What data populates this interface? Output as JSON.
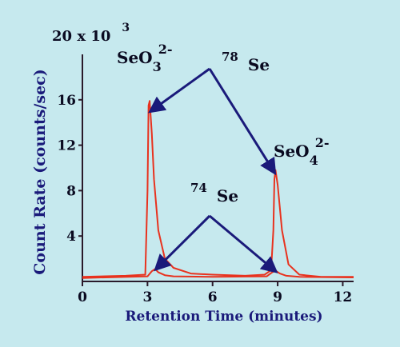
{
  "chart_data": {
    "type": "line",
    "xlabel": "Retention Time (minutes)",
    "ylabel": "Count Rate  (counts/sec)",
    "y_multiplier_label": {
      "base": "20  x 10",
      "exp": "3"
    },
    "xlim": [
      0,
      12.5
    ],
    "ylim": [
      0,
      20
    ],
    "x_ticks": [
      0,
      3,
      6,
      9,
      12
    ],
    "y_ticks": [
      4,
      8,
      12,
      16
    ],
    "grid": false,
    "series": [
      {
        "name": "78 Se",
        "color": "#e8321e",
        "x": [
          0.0,
          2.0,
          2.9,
          3.0,
          3.05,
          3.1,
          3.2,
          3.3,
          3.5,
          3.8,
          4.2,
          5.0,
          6.0,
          7.5,
          8.4,
          8.7,
          8.8,
          8.85,
          8.9,
          9.0,
          9.2,
          9.5,
          10.0,
          11.0,
          12.5
        ],
        "y": [
          0.4,
          0.5,
          0.6,
          8.0,
          15.5,
          15.9,
          13.0,
          9.0,
          4.5,
          2.0,
          1.2,
          0.7,
          0.6,
          0.5,
          0.6,
          1.0,
          4.5,
          9.0,
          9.8,
          8.5,
          4.5,
          1.5,
          0.6,
          0.4,
          0.4
        ]
      },
      {
        "name": "74 Se",
        "color": "#e8321e",
        "x": [
          0.0,
          3.0,
          3.2,
          3.35,
          3.5,
          3.8,
          4.2,
          6.0,
          8.5,
          8.75,
          8.9,
          9.1,
          9.4,
          10.0,
          12.5
        ],
        "y": [
          0.3,
          0.45,
          0.9,
          1.1,
          0.8,
          0.55,
          0.45,
          0.4,
          0.45,
          0.8,
          0.95,
          0.7,
          0.5,
          0.4,
          0.35
        ]
      }
    ],
    "annotations": {
      "seo3": {
        "base": "SeO",
        "sub": "3",
        "sup": "2-"
      },
      "seo4": {
        "base": "SeO",
        "sub": "4",
        "sup": "2-"
      },
      "se78": {
        "mass": "78",
        "symbol": "Se",
        "points_to": [
          [
            3.15,
            15.0
          ],
          [
            8.85,
            9.6
          ]
        ]
      },
      "se74": {
        "mass": "74",
        "symbol": "Se",
        "points_to": [
          [
            3.4,
            1.1
          ],
          [
            8.9,
            0.9
          ]
        ]
      }
    }
  }
}
